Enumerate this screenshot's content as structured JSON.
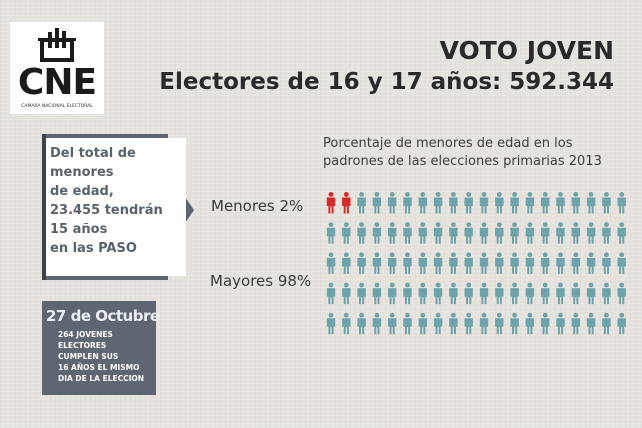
{
  "logo": {
    "text": "CNE",
    "subtext": "CAMARA NACIONAL ELECTORAL"
  },
  "header": {
    "title": "VOTO JOVEN",
    "subtitle": "Electores de 16 y 17 años: 592.344"
  },
  "info_box": {
    "lines": [
      "Del total de",
      "menores",
      "de edad,",
      "23.455 tendrán",
      "15 años",
      "en las PASO"
    ]
  },
  "october_box": {
    "title": "27 de Octubre",
    "lines": [
      "264 JOVENES",
      "ELECTORES",
      "CUMPLEN SUS",
      "16 AÑOS EL MISMO",
      "DIA DE LA ELECCION"
    ]
  },
  "chart_data": {
    "type": "pictogram",
    "title_lines": [
      "Porcentaje de menores de edad en los",
      "padrones de las elecciones primarias 2013"
    ],
    "total_icons": 100,
    "series": [
      {
        "name": "Menores 2%",
        "value": 2,
        "color": "#d42a2a"
      },
      {
        "name": "Mayores 98%",
        "value": 98,
        "color": "#6fa3aa"
      }
    ]
  }
}
